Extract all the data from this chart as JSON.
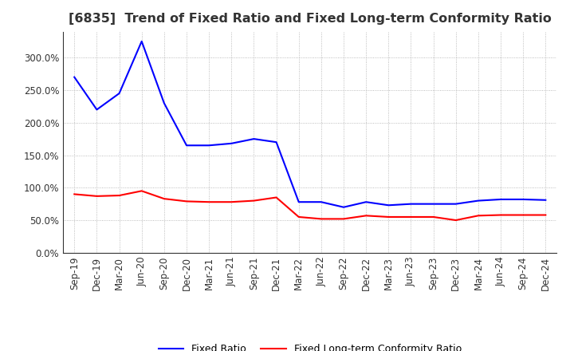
{
  "title": "[6835]  Trend of Fixed Ratio and Fixed Long-term Conformity Ratio",
  "x_labels": [
    "Sep-19",
    "Dec-19",
    "Mar-20",
    "Jun-20",
    "Sep-20",
    "Dec-20",
    "Mar-21",
    "Jun-21",
    "Sep-21",
    "Dec-21",
    "Mar-22",
    "Jun-22",
    "Sep-22",
    "Dec-22",
    "Mar-23",
    "Jun-23",
    "Sep-23",
    "Dec-23",
    "Mar-24",
    "Jun-24",
    "Sep-24",
    "Dec-24"
  ],
  "fixed_ratio": [
    2.7,
    2.2,
    2.45,
    3.25,
    2.3,
    1.65,
    1.65,
    1.68,
    1.75,
    1.7,
    0.78,
    0.78,
    0.7,
    0.78,
    0.73,
    0.75,
    0.75,
    0.75,
    0.8,
    0.82,
    0.82,
    0.81
  ],
  "fixed_lt_ratio": [
    0.9,
    0.87,
    0.88,
    0.95,
    0.83,
    0.79,
    0.78,
    0.78,
    0.8,
    0.85,
    0.55,
    0.52,
    0.52,
    0.57,
    0.55,
    0.55,
    0.55,
    0.5,
    0.57,
    0.58,
    0.58,
    0.58
  ],
  "fixed_ratio_color": "#0000FF",
  "fixed_lt_ratio_color": "#FF0000",
  "background_color": "#FFFFFF",
  "grid_color": "#AAAAAA",
  "ylim": [
    0.0,
    3.4
  ],
  "yticks": [
    0.0,
    0.5,
    1.0,
    1.5,
    2.0,
    2.5,
    3.0
  ],
  "ytick_labels": [
    "0.0%",
    "50.0%",
    "100.0%",
    "150.0%",
    "200.0%",
    "250.0%",
    "300.0%"
  ],
  "legend_fixed_ratio": "Fixed Ratio",
  "legend_fixed_lt_ratio": "Fixed Long-term Conformity Ratio",
  "title_fontsize": 11.5,
  "axis_fontsize": 8.5,
  "legend_fontsize": 9,
  "line_width": 1.5
}
